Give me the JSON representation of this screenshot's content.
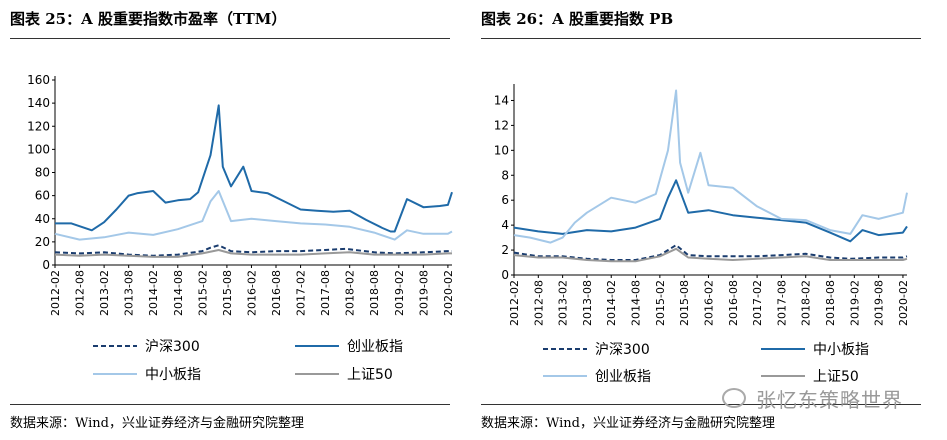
{
  "panels": [
    {
      "title": "图表 25：A 股重要指数市盈率（TTM）",
      "source": "数据来源：Wind，兴业证券经济与金融研究院整理"
    },
    {
      "title": "图表 26：A 股重要指数 PB",
      "source": "数据来源：Wind，兴业证券经济与金融研究院整理"
    }
  ],
  "watermark": "张忆东策略世界",
  "chart_data": [
    {
      "type": "line",
      "title": "图表 25：A 股重要指数市盈率（TTM）",
      "ylim": [
        0,
        160
      ],
      "yticks": [
        0,
        20,
        40,
        60,
        80,
        100,
        120,
        140,
        160
      ],
      "xticks": [
        "2012-02",
        "2012-08",
        "2013-02",
        "2013-08",
        "2014-02",
        "2014-08",
        "2015-02",
        "2015-08",
        "2016-02",
        "2016-08",
        "2017-02",
        "2017-08",
        "2018-02",
        "2018-08",
        "2019-02",
        "2019-08",
        "2020-02"
      ],
      "x_range": [
        "2012-02",
        "2020-03"
      ],
      "legend_placement": "bottom",
      "series": [
        {
          "name": "沪深300",
          "style": "dashed",
          "color": "#1a3c6e",
          "x": [
            "2012-02",
            "2012-08",
            "2013-02",
            "2013-08",
            "2014-02",
            "2014-08",
            "2015-02",
            "2015-04",
            "2015-06",
            "2015-09",
            "2016-02",
            "2016-08",
            "2017-02",
            "2017-08",
            "2018-01",
            "2018-08",
            "2019-01",
            "2019-08",
            "2020-02",
            "2020-03"
          ],
          "values": [
            11,
            10,
            11,
            9,
            8,
            9,
            12,
            15,
            17,
            12,
            11,
            12,
            12,
            13,
            14,
            11,
            10,
            11,
            12,
            12
          ]
        },
        {
          "name": "创业板指",
          "style": "solid",
          "color": "#1f6aa8",
          "x": [
            "2012-02",
            "2012-06",
            "2012-11",
            "2013-02",
            "2013-05",
            "2013-08",
            "2013-10",
            "2014-02",
            "2014-05",
            "2014-08",
            "2014-11",
            "2015-01",
            "2015-04",
            "2015-06",
            "2015-07",
            "2015-09",
            "2015-12",
            "2016-02",
            "2016-06",
            "2016-10",
            "2017-02",
            "2017-06",
            "2017-10",
            "2018-02",
            "2018-06",
            "2018-10",
            "2018-12",
            "2019-01",
            "2019-04",
            "2019-08",
            "2019-12",
            "2020-02",
            "2020-03"
          ],
          "values": [
            36,
            36,
            30,
            37,
            48,
            60,
            62,
            64,
            54,
            56,
            57,
            63,
            95,
            138,
            85,
            68,
            85,
            64,
            62,
            55,
            48,
            47,
            46,
            47,
            39,
            32,
            29,
            29,
            57,
            50,
            51,
            52,
            63
          ]
        },
        {
          "name": "中小板指",
          "style": "solid",
          "color": "#a4c8e8",
          "x": [
            "2012-02",
            "2012-08",
            "2013-02",
            "2013-08",
            "2014-02",
            "2014-08",
            "2015-02",
            "2015-04",
            "2015-06",
            "2015-09",
            "2016-02",
            "2016-08",
            "2017-02",
            "2017-08",
            "2018-02",
            "2018-08",
            "2019-01",
            "2019-04",
            "2019-08",
            "2020-02",
            "2020-03"
          ],
          "values": [
            27,
            22,
            24,
            28,
            26,
            31,
            38,
            55,
            64,
            38,
            40,
            38,
            36,
            35,
            33,
            28,
            22,
            30,
            27,
            27,
            29
          ]
        },
        {
          "name": "上证50",
          "style": "solid",
          "color": "#999999",
          "x": [
            "2012-02",
            "2012-08",
            "2013-02",
            "2013-08",
            "2014-02",
            "2014-08",
            "2015-02",
            "2015-06",
            "2015-09",
            "2016-02",
            "2016-08",
            "2017-02",
            "2017-08",
            "2018-02",
            "2018-08",
            "2019-01",
            "2019-08",
            "2020-02",
            "2020-03"
          ],
          "values": [
            9,
            8,
            9,
            8,
            7,
            7,
            10,
            13,
            10,
            9,
            9,
            9,
            10,
            11,
            9,
            9,
            9,
            10,
            10
          ]
        }
      ]
    },
    {
      "type": "line",
      "title": "图表 26：A 股重要指数 PB",
      "ylim": [
        0,
        15
      ],
      "yticks": [
        0,
        2,
        4,
        6,
        8,
        10,
        12,
        14
      ],
      "xticks": [
        "2012-02",
        "2012-08",
        "2013-02",
        "2013-08",
        "2014-02",
        "2014-08",
        "2015-02",
        "2015-08",
        "2016-02",
        "2016-08",
        "2017-02",
        "2017-08",
        "2018-02",
        "2018-08",
        "2019-02",
        "2019-08",
        "2020-02"
      ],
      "x_range": [
        "2012-02",
        "2020-03"
      ],
      "legend_placement": "bottom",
      "series": [
        {
          "name": "沪深300",
          "style": "dashed",
          "color": "#1a3c6e",
          "x": [
            "2012-02",
            "2012-08",
            "2013-02",
            "2013-08",
            "2014-02",
            "2014-08",
            "2015-02",
            "2015-06",
            "2015-09",
            "2016-02",
            "2016-08",
            "2017-02",
            "2017-08",
            "2018-02",
            "2018-08",
            "2019-01",
            "2019-08",
            "2020-02",
            "2020-03"
          ],
          "values": [
            1.8,
            1.5,
            1.5,
            1.3,
            1.2,
            1.2,
            1.6,
            2.4,
            1.6,
            1.5,
            1.5,
            1.5,
            1.6,
            1.7,
            1.4,
            1.3,
            1.4,
            1.4,
            1.5
          ]
        },
        {
          "name": "中小板指",
          "style": "solid",
          "color": "#1f6aa8",
          "x": [
            "2012-02",
            "2012-08",
            "2013-02",
            "2013-08",
            "2014-02",
            "2014-08",
            "2015-02",
            "2015-04",
            "2015-06",
            "2015-09",
            "2016-02",
            "2016-08",
            "2017-02",
            "2017-08",
            "2018-02",
            "2018-08",
            "2019-01",
            "2019-04",
            "2019-08",
            "2020-02",
            "2020-03"
          ],
          "values": [
            3.8,
            3.5,
            3.3,
            3.6,
            3.5,
            3.8,
            4.5,
            6.2,
            7.6,
            5.0,
            5.2,
            4.8,
            4.6,
            4.4,
            4.2,
            3.4,
            2.7,
            3.6,
            3.2,
            3.4,
            3.9
          ]
        },
        {
          "name": "创业板指",
          "style": "solid",
          "color": "#a4c8e8",
          "x": [
            "2012-02",
            "2012-06",
            "2012-11",
            "2013-02",
            "2013-05",
            "2013-08",
            "2014-02",
            "2014-08",
            "2015-01",
            "2015-04",
            "2015-06",
            "2015-07",
            "2015-09",
            "2015-12",
            "2016-02",
            "2016-08",
            "2017-02",
            "2017-08",
            "2018-02",
            "2018-08",
            "2019-01",
            "2019-04",
            "2019-08",
            "2020-02",
            "2020-03"
          ],
          "values": [
            3.2,
            3.0,
            2.6,
            3.0,
            4.2,
            5.0,
            6.2,
            5.8,
            6.5,
            10,
            14.8,
            9,
            6.6,
            9.8,
            7.2,
            7.0,
            5.5,
            4.5,
            4.4,
            3.6,
            3.3,
            4.8,
            4.5,
            5.0,
            6.6
          ]
        },
        {
          "name": "上证50",
          "style": "solid",
          "color": "#999999",
          "x": [
            "2012-02",
            "2012-08",
            "2013-02",
            "2013-08",
            "2014-02",
            "2014-08",
            "2015-02",
            "2015-06",
            "2015-09",
            "2016-02",
            "2016-08",
            "2017-02",
            "2017-08",
            "2018-02",
            "2018-08",
            "2019-01",
            "2019-08",
            "2020-02",
            "2020-03"
          ],
          "values": [
            1.6,
            1.4,
            1.4,
            1.2,
            1.1,
            1.1,
            1.5,
            2.1,
            1.4,
            1.3,
            1.2,
            1.3,
            1.4,
            1.5,
            1.2,
            1.2,
            1.2,
            1.2,
            1.3
          ]
        }
      ]
    }
  ]
}
